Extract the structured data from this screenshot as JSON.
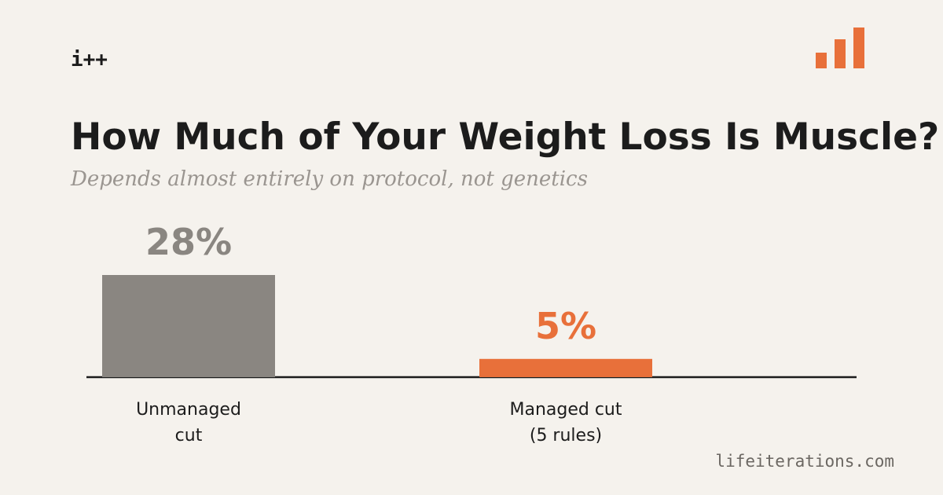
{
  "logo": "i++",
  "chart_data": {
    "type": "bar",
    "title": "How Much of Your Weight Loss Is Muscle?",
    "subtitle": "Depends almost entirely on protocol, not genetics",
    "categories": [
      "Unmanaged cut",
      "Managed cut (5 rules)"
    ],
    "values": [
      28,
      5
    ],
    "value_labels": [
      "28%",
      "5%"
    ],
    "colors": [
      "#8a8681",
      "#e8703a"
    ],
    "source": "lifeiterations.com"
  }
}
